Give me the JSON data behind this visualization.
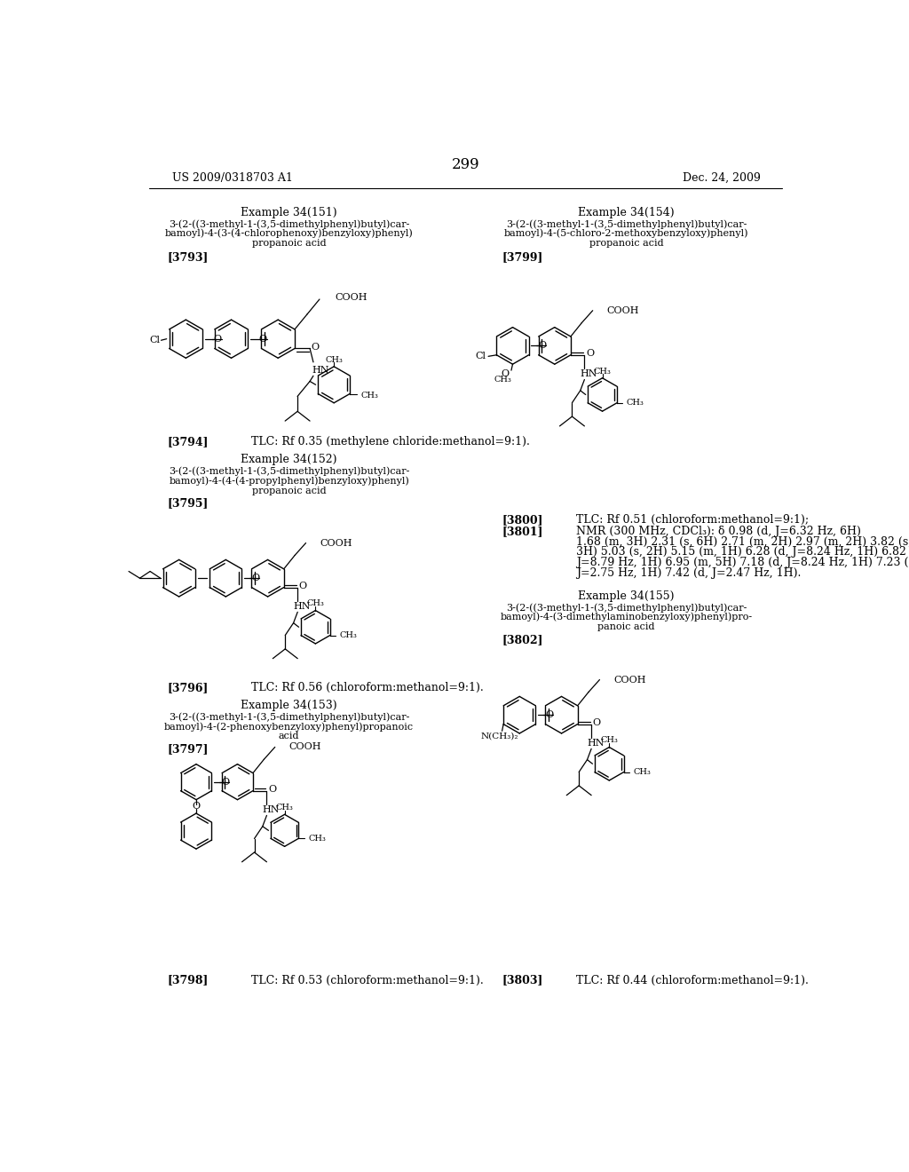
{
  "page_number": "299",
  "header_left": "US 2009/0318703 A1",
  "header_right": "Dec. 24, 2009",
  "background_color": "#ffffff",
  "text_color": "#000000"
}
